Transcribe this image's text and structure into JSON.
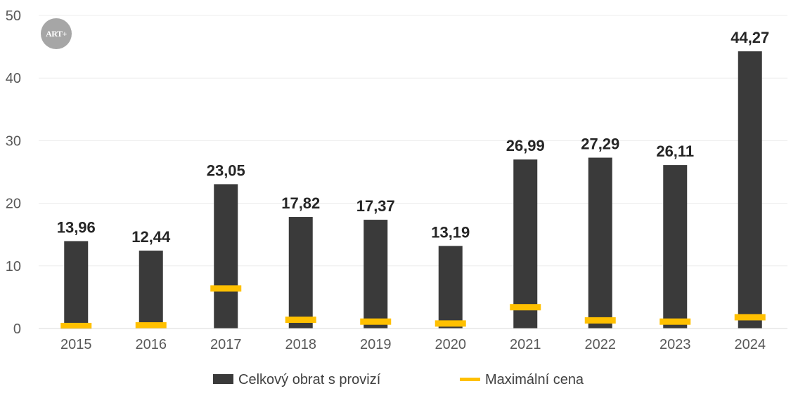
{
  "chart_data": {
    "type": "bar",
    "title": "",
    "xlabel": "",
    "ylabel": "",
    "categories": [
      "2015",
      "2016",
      "2017",
      "2018",
      "2019",
      "2020",
      "2021",
      "2022",
      "2023",
      "2024"
    ],
    "series": [
      {
        "name": "Celkový obrat s provizí",
        "type": "bar",
        "color": "#3a3a3a",
        "values": [
          13.96,
          12.44,
          23.05,
          17.82,
          17.37,
          13.19,
          26.99,
          27.29,
          26.11,
          44.27
        ],
        "labels": [
          "13,96",
          "12,44",
          "23,05",
          "17,82",
          "17,37",
          "13,19",
          "26,99",
          "27,29",
          "26,11",
          "44,27"
        ]
      },
      {
        "name": "Maximální cena",
        "type": "marker",
        "color": "#ffc000",
        "values": [
          0.4,
          0.5,
          6.4,
          1.4,
          1.1,
          0.8,
          3.4,
          1.3,
          1.1,
          1.8
        ]
      }
    ],
    "ylim": [
      0,
      50
    ],
    "yticks": [
      "0",
      "10",
      "20",
      "30",
      "40",
      "50"
    ],
    "ytick_values": [
      0,
      10,
      20,
      30,
      40,
      50
    ],
    "grid": true,
    "legend": "bottom"
  },
  "logo": {
    "text": "ART+",
    "color": "#a6a6a6"
  }
}
